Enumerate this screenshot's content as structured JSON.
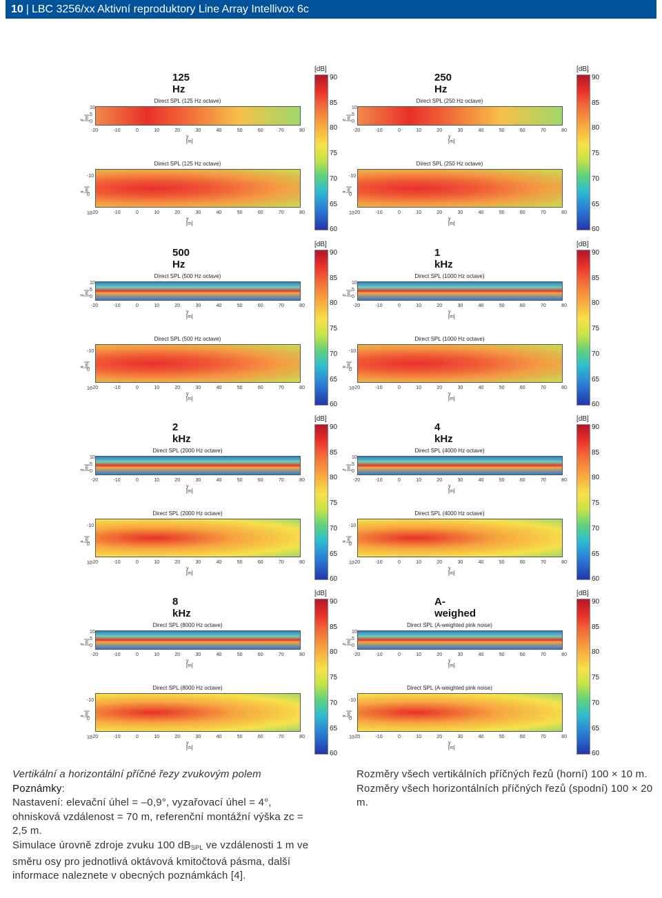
{
  "header": {
    "page_number": "10",
    "separator": "|",
    "title": "LBC 3256/xx Aktivní reproduktory Line Array Intellivox 6c"
  },
  "colorbar": {
    "unit": "[dB]",
    "ticks": [
      "90",
      "85",
      "80",
      "75",
      "70",
      "65",
      "60"
    ]
  },
  "axes": {
    "y_ticks": [
      "-20",
      "-10",
      "0",
      "10",
      "20",
      "30",
      "40",
      "50",
      "60",
      "70",
      "80"
    ],
    "y_label": "y [m]",
    "z_label": "z [m]",
    "z_ticks": [
      "10",
      "5",
      "0"
    ],
    "x_label": "x [m]",
    "x_ticks": [
      "-10",
      "0",
      "10"
    ]
  },
  "panels": [
    {
      "freq": "125 Hz",
      "vtitle": "Direct SPL (125 Hz octave)",
      "htitle": "Direct SPL (125 Hz octave)"
    },
    {
      "freq": "250 Hz",
      "vtitle": "Direct SPL (250 Hz octave)",
      "htitle": "Direct SPL (250 Hz octave)"
    },
    {
      "freq": "500 Hz",
      "vtitle": "Direct SPL (500 Hz octave)",
      "htitle": "Direct SPL (500 Hz octave)"
    },
    {
      "freq": "1 kHz",
      "vtitle": "Direct SPL (1000 Hz octave)",
      "htitle": "Direct SPL (1000 Hz octave)"
    },
    {
      "freq": "2 kHz",
      "vtitle": "Direct SPL (2000 Hz octave)",
      "htitle": "Direct SPL (2000 Hz octave)"
    },
    {
      "freq": "4 kHz",
      "vtitle": "Direct SPL (4000 Hz octave)",
      "htitle": "Direct SPL (4000 Hz octave)"
    },
    {
      "freq": "8 kHz",
      "vtitle": "Direct SPL (8000 Hz octave)",
      "htitle": "Direct SPL (8000 Hz octave)"
    },
    {
      "freq": "A-weighed",
      "vtitle": "Direct SPL (A-weighted pink noise)",
      "htitle": "Direct SPL (A-weighted pink noise)"
    }
  ],
  "caption_left": {
    "line1": "Vertikální a horizontální příčné řezy zvukovým polem",
    "notes_label": "Poznámky",
    "notes_colon": ":",
    "p1": "Nastavení: elevační úhel = –0,9°, vyzařovací úhel = 4°, ohnisková vzdálenost = 70 m, referenční montážní výška zc = 2,5 m.",
    "p2_a": "Simulace úrovně zdroje zvuku 100 dB",
    "p2_sub": "SPL",
    "p2_b": " ve vzdálenosti 1 m ve směru osy pro jednotlivá oktávová kmitočtová pásma, další informace naleznete v obecných poznámkách [4]."
  },
  "caption_right": {
    "p1": "Rozměry všech vertikálních příčných řezů (horní) 100 × 10 m.",
    "p2": "Rozměry všech horizontálních příčných řezů (spodní) 100 × 20 m."
  },
  "colors": {
    "header_bg": "#00539a",
    "hot": "#e7302a",
    "cold": "#2336a8"
  }
}
